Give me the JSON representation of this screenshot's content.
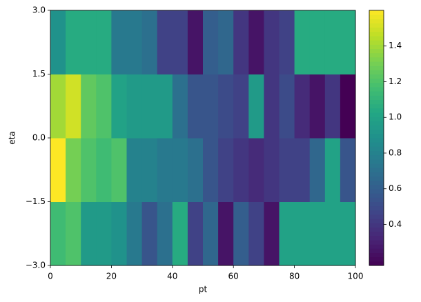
{
  "chart_data": {
    "type": "heatmap",
    "x_label": "pt",
    "y_label": "eta",
    "colormap": "viridis",
    "x_edges": [
      0,
      5,
      10,
      15,
      20,
      25,
      30,
      35,
      40,
      45,
      50,
      55,
      60,
      65,
      70,
      75,
      80,
      85,
      90,
      95,
      100
    ],
    "y_edges": [
      -3,
      -1.5,
      0,
      1.5,
      3
    ],
    "z": [
      [
        1.15,
        1.2,
        0.95,
        0.95,
        0.9,
        0.75,
        0.55,
        0.7,
        1.05,
        0.45,
        0.65,
        0.25,
        0.6,
        0.45,
        0.25,
        1.0,
        1.0,
        1.0,
        1.0,
        1.0
      ],
      [
        1.6,
        1.3,
        1.2,
        1.15,
        1.2,
        0.8,
        0.8,
        0.75,
        0.75,
        0.7,
        0.55,
        0.45,
        0.4,
        0.35,
        0.4,
        0.45,
        0.45,
        0.65,
        1.0,
        0.55
      ],
      [
        1.4,
        1.5,
        1.25,
        1.2,
        1.0,
        0.95,
        0.95,
        0.95,
        0.7,
        0.55,
        0.55,
        0.5,
        0.45,
        0.95,
        0.4,
        0.5,
        0.35,
        0.25,
        0.4,
        0.17
      ],
      [
        0.9,
        1.05,
        1.05,
        1.05,
        0.75,
        0.75,
        0.7,
        0.45,
        0.45,
        0.25,
        0.6,
        0.65,
        0.4,
        0.25,
        0.4,
        0.45,
        1.05,
        1.05,
        1.05,
        1.05
      ]
    ],
    "xlim": [
      0,
      100
    ],
    "xticks": [
      0,
      20,
      40,
      60,
      80,
      100
    ],
    "ylim": [
      -3,
      3
    ],
    "yticks": [
      {
        "value": -3,
        "label": "−3.0"
      },
      {
        "value": -1.5,
        "label": "−1.5"
      },
      {
        "value": 0,
        "label": "0.0"
      },
      1.5,
      {
        "value": 3,
        "label": "3.0"
      }
    ],
    "clim": [
      0.17,
      1.6
    ],
    "cticks": [
      0.4,
      0.6,
      0.8,
      {
        "value": 1,
        "label": "1.0"
      },
      1.2,
      1.4
    ]
  }
}
